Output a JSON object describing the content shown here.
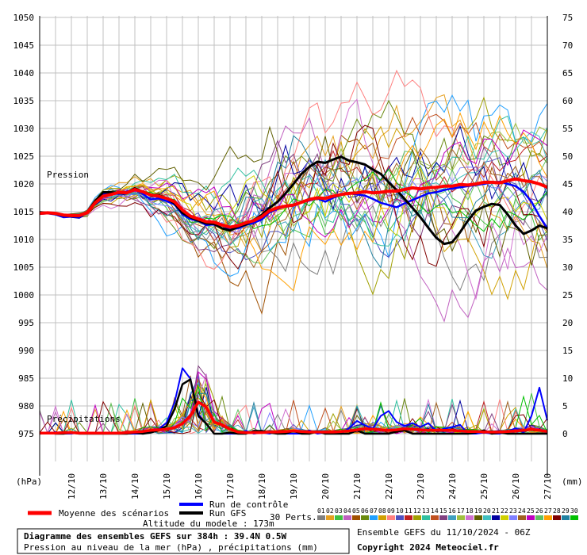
{
  "chart_data": {
    "type": "line",
    "title": "Diagramme des ensembles GEFS sur 384h : 39.4N 0.5W",
    "subtitle": "Pression au niveau de la mer (hPa) , précipitations (mm)",
    "altitude": "Altitude du modele : 173m",
    "ensemble_info": "Ensemble GEFS du 11/10/2024 - 06Z",
    "copyright": "Copyright 2024 Meteociel.fr",
    "label_pressure": "Pression",
    "label_precip": "Précipitations",
    "ylabel_left": "(hPa)",
    "ylabel_right": "(mm)",
    "y_left_ticks": [
      "1050",
      "1045",
      "1040",
      "1035",
      "1030",
      "1025",
      "1020",
      "1015",
      "1010",
      "1005",
      "1000",
      "995",
      "990",
      "985",
      "980",
      "975"
    ],
    "y_right_ticks": [
      "75",
      "70",
      "65",
      "60",
      "55",
      "50",
      "45",
      "40",
      "35",
      "30",
      "25",
      "20",
      "15",
      "10",
      "5",
      "0"
    ],
    "ylim_pressure": [
      975,
      1050
    ],
    "ylim_precip": [
      0,
      75
    ],
    "x_ticks": [
      "12/10",
      "13/10",
      "14/10",
      "15/10",
      "16/10",
      "17/10",
      "18/10",
      "19/10",
      "20/10",
      "21/10",
      "22/10",
      "23/10",
      "24/10",
      "25/10",
      "26/10",
      "27/10"
    ],
    "legend": {
      "mean": "Moyenne des scénarios",
      "control": "Run de contrôle",
      "gfs": "Run GFS",
      "perts": "30 Perts.",
      "pert_numbers": [
        "01",
        "02",
        "03",
        "04",
        "05",
        "06",
        "07",
        "08",
        "09",
        "10",
        "11",
        "12",
        "13",
        "14",
        "15",
        "16",
        "17",
        "18",
        "19",
        "20",
        "21",
        "22",
        "23",
        "24",
        "25",
        "26",
        "27",
        "28",
        "29",
        "30"
      ]
    },
    "colors": {
      "mean": "#ff0000",
      "control": "#0000ff",
      "gfs": "#000000",
      "grid": "#c0c0c0",
      "perts": [
        "#808080",
        "#e6a020",
        "#40c040",
        "#c060c0",
        "#a05000",
        "#6a8a10",
        "#20a0ff",
        "#d0a000",
        "#ff8080",
        "#5050c0",
        "#c02020",
        "#a0a000",
        "#30c0a0",
        "#c05020",
        "#804080",
        "#40a0c0",
        "#a0c040",
        "#d070d0",
        "#606000",
        "#40c0c0",
        "#0000a0",
        "#d0d000",
        "#8080ff",
        "#a06020",
        "#c000c0",
        "#60c060",
        "#ffa000",
        "#800000",
        "#2080a0",
        "#00c000"
      ]
    },
    "time_steps": 65,
    "series": [
      {
        "name": "Moyenne des scénarios",
        "role": "mean",
        "pressure": [
          1014.7,
          1014.8,
          1014.7,
          1014.4,
          1014.3,
          1014.3,
          1014.8,
          1016.6,
          1017.8,
          1018.1,
          1018.5,
          1018.4,
          1019.0,
          1018.6,
          1018.0,
          1017.8,
          1017.4,
          1016.8,
          1015.3,
          1014.2,
          1013.7,
          1013.2,
          1013.1,
          1012.6,
          1012.2,
          1012.5,
          1013.0,
          1013.4,
          1014.1,
          1015.2,
          1015.7,
          1016.0,
          1016.2,
          1016.7,
          1017.2,
          1017.5,
          1017.4,
          1017.8,
          1018.1,
          1018.3,
          1018.4,
          1018.6,
          1018.4,
          1018.5,
          1018.7,
          1018.7,
          1019.0,
          1019.3,
          1019.1,
          1019.3,
          1019.4,
          1019.6,
          1019.6,
          1019.9,
          1019.8,
          1020.0,
          1020.3,
          1020.3,
          1020.2,
          1020.6,
          1020.9,
          1020.6,
          1020.4,
          1020.0,
          1019.4
        ],
        "precip": [
          0.1,
          0.1,
          0.1,
          0.2,
          0.2,
          0.1,
          0.1,
          0.1,
          0.1,
          0.1,
          0.1,
          0.2,
          0.3,
          0.4,
          0.6,
          0.7,
          0.8,
          1.1,
          1.8,
          3.2,
          5.7,
          4.8,
          2.1,
          1.6,
          0.8,
          0.3,
          0.2,
          0.2,
          0.2,
          0.3,
          0.3,
          0.4,
          0.5,
          0.4,
          0.3,
          0.3,
          0.3,
          0.3,
          0.4,
          0.5,
          0.7,
          0.9,
          0.8,
          0.7,
          0.6,
          0.7,
          0.9,
          0.8,
          0.7,
          0.6,
          0.6,
          0.6,
          0.6,
          0.5,
          0.4,
          0.4,
          0.3,
          0.3,
          0.3,
          0.4,
          0.5,
          0.6,
          0.8,
          0.6,
          0.4
        ]
      },
      {
        "name": "Run de contrôle",
        "role": "control",
        "pressure": [
          1014.6,
          1014.7,
          1014.5,
          1014.0,
          1014.1,
          1014.0,
          1014.9,
          1016.9,
          1018.1,
          1018.4,
          1018.2,
          1018.6,
          1019.1,
          1018.2,
          1017.2,
          1017.4,
          1016.9,
          1016.3,
          1014.5,
          1013.7,
          1013.3,
          1012.6,
          1012.7,
          1012.0,
          1011.9,
          1012.0,
          1012.6,
          1013.0,
          1013.6,
          1014.9,
          1015.5,
          1015.9,
          1016.1,
          1016.7,
          1017.0,
          1017.4,
          1016.8,
          1017.5,
          1018.1,
          1018.3,
          1018.1,
          1017.9,
          1017.3,
          1016.6,
          1016.2,
          1015.8,
          1016.5,
          1017.1,
          1017.7,
          1018.3,
          1018.5,
          1018.9,
          1019.2,
          1019.4,
          1019.6,
          1019.8,
          1020.0,
          1020.3,
          1020.4,
          1020.0,
          1019.6,
          1018.6,
          1016.8,
          1014.2,
          1012.0
        ],
        "precip": [
          0.0,
          0.0,
          0.3,
          0.0,
          0.0,
          0.2,
          0.0,
          0.0,
          0.0,
          0.0,
          0.0,
          0.0,
          0.0,
          0.0,
          0.5,
          0.8,
          2.0,
          5.6,
          11.8,
          9.9,
          3.5,
          1.8,
          0.0,
          0.0,
          0.0,
          0.0,
          0.5,
          0.0,
          0.2,
          0.0,
          0.5,
          0.0,
          0.0,
          0.0,
          0.6,
          0.0,
          0.2,
          0.2,
          0.0,
          1.0,
          2.3,
          1.5,
          0.9,
          3.2,
          4.1,
          2.1,
          1.4,
          1.9,
          1.2,
          1.9,
          0.5,
          0.9,
          1.2,
          1.6,
          0.0,
          0.0,
          0.2,
          0.0,
          0.0,
          0.4,
          1.0,
          0.2,
          3.2,
          8.3,
          2.4
        ]
      },
      {
        "name": "Run GFS",
        "role": "gfs",
        "pressure": [
          1014.9,
          1014.8,
          1014.6,
          1014.3,
          1014.2,
          1014.2,
          1014.9,
          1016.9,
          1018.5,
          1018.5,
          1018.4,
          1018.4,
          1019.2,
          1018.6,
          1018.0,
          1018.0,
          1017.4,
          1016.5,
          1014.8,
          1014.0,
          1013.4,
          1012.9,
          1012.8,
          1012.0,
          1011.6,
          1012.3,
          1012.7,
          1013.5,
          1014.4,
          1015.7,
          1016.8,
          1018.3,
          1020.0,
          1021.8,
          1023.1,
          1024.0,
          1023.8,
          1024.4,
          1024.9,
          1024.2,
          1023.9,
          1023.5,
          1022.6,
          1021.8,
          1020.3,
          1018.9,
          1017.3,
          1015.7,
          1014.0,
          1012.1,
          1010.3,
          1009.2,
          1009.5,
          1011.3,
          1013.4,
          1015.2,
          1015.9,
          1016.4,
          1016.2,
          1014.5,
          1012.5,
          1011.0,
          1011.6,
          1012.5,
          1012.0
        ],
        "precip": [
          0.0,
          0.2,
          0.0,
          0.0,
          0.2,
          0.0,
          0.0,
          0.0,
          0.0,
          0.0,
          0.0,
          0.0,
          0.2,
          0.0,
          0.2,
          0.6,
          1.4,
          4.4,
          8.9,
          9.8,
          3.2,
          1.8,
          0.0,
          0.0,
          0.2,
          0.0,
          0.0,
          0.5,
          0.5,
          0.2,
          0.0,
          0.0,
          0.5,
          0.0,
          0.0,
          0.4,
          0.0,
          0.0,
          0.0,
          0.0,
          0.6,
          0.0,
          0.0,
          0.0,
          0.0,
          0.4,
          0.6,
          0.0,
          0.0,
          0.0,
          0.0,
          0.0,
          0.0,
          0.0,
          0.0,
          0.2,
          0.6,
          0.0,
          0.2,
          0.0,
          0.0,
          0.0,
          0.0,
          0.0,
          0.0
        ]
      }
    ]
  }
}
